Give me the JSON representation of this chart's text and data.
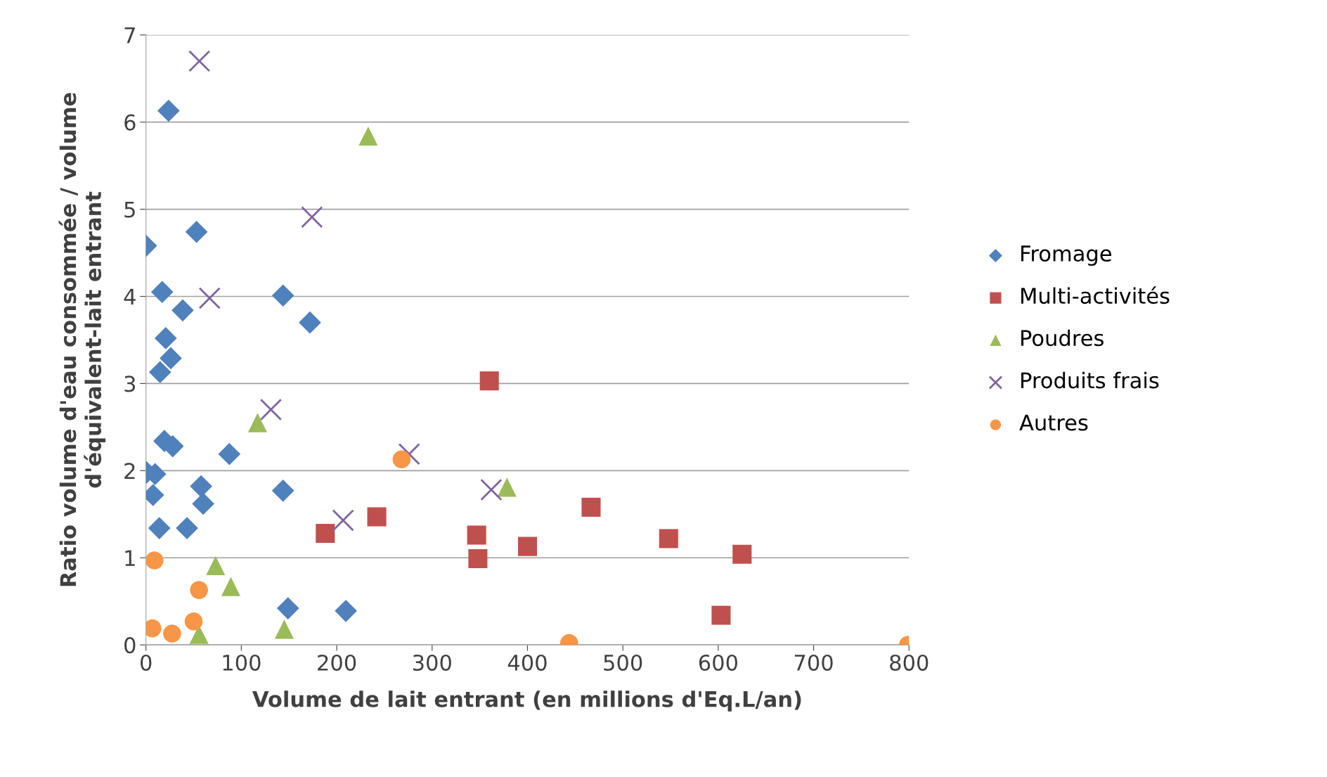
{
  "chart_data": {
    "type": "scatter",
    "xlabel": "Volume de lait entrant (en millions d'Eq.L/an)",
    "ylabel": "Ratio volume d'eau consommée / volume d'équivalent-lait entrant",
    "xlim": [
      0,
      800
    ],
    "xticks": [
      0,
      100,
      200,
      300,
      400,
      500,
      600,
      700,
      800
    ],
    "ylim": [
      0,
      7
    ],
    "yticks": [
      0,
      1,
      2,
      3,
      4,
      5,
      6,
      7
    ],
    "grid": "y",
    "legend": "right",
    "series": [
      {
        "name": "Fromage",
        "color": "#4f81bd",
        "marker": "diamond",
        "x": [
          0,
          23.7,
          53,
          17,
          38.5,
          20.7,
          26,
          14.8,
          143.7,
          171.9,
          19.3,
          28,
          87.4,
          0.7,
          9.6,
          57.8,
          7.4,
          143.7,
          60,
          14,
          43,
          148.9,
          209.6
        ],
        "values": [
          4.58,
          6.13,
          4.74,
          4.05,
          3.84,
          3.52,
          3.29,
          3.13,
          4.01,
          3.7,
          2.34,
          2.28,
          2.19,
          1.98,
          1.96,
          1.82,
          1.72,
          1.77,
          1.62,
          1.34,
          1.34,
          0.42,
          0.39
        ]
      },
      {
        "name": "Multi-activités",
        "color": "#c0504d",
        "marker": "square",
        "x": [
          360,
          188,
          242,
          346.7,
          348,
          400,
          466.7,
          548,
          625,
          603
        ],
        "values": [
          3.03,
          1.28,
          1.47,
          1.26,
          0.99,
          1.13,
          1.58,
          1.22,
          1.04,
          0.34
        ]
      },
      {
        "name": "Poudres",
        "color": "#9bbb59",
        "marker": "triangle",
        "x": [
          233,
          117,
          378.5,
          73,
          89,
          55.6,
          145
        ],
        "values": [
          5.84,
          2.55,
          1.81,
          0.91,
          0.67,
          0.12,
          0.18
        ]
      },
      {
        "name": "Produits frais",
        "color": "#8064a2",
        "marker": "cross",
        "x": [
          56,
          174,
          66.7,
          131,
          276,
          206.7,
          362
        ],
        "values": [
          6.7,
          4.91,
          3.98,
          2.7,
          2.19,
          1.43,
          1.78
        ]
      },
      {
        "name": "Autres",
        "color": "#f79646",
        "marker": "circle",
        "x": [
          8.9,
          55.6,
          268,
          6.7,
          27.4,
          50,
          443.7,
          799
        ],
        "values": [
          0.97,
          0.63,
          2.13,
          0.19,
          0.13,
          0.27,
          0.02,
          0.0
        ]
      }
    ]
  }
}
